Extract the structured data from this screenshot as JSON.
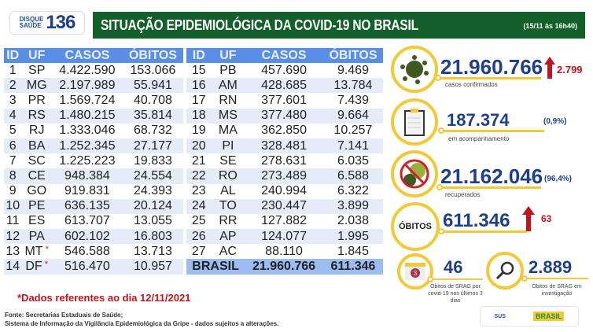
{
  "header": {
    "logo_top": "DISQUE",
    "logo_bottom": "SAÚDE",
    "logo_number": "136",
    "title": "SITUAÇÃO EPIDEMIOLÓGICA DA COVID-19 NO BRASIL",
    "date": "(15/11 às 16h40)"
  },
  "table": {
    "columns": [
      "ID",
      "UF",
      "CASOS",
      "ÓBITOS"
    ],
    "left": [
      [
        "1",
        "SP",
        "4.422.590",
        "153.066"
      ],
      [
        "2",
        "MG",
        "2.197.989",
        "55.941"
      ],
      [
        "3",
        "PR",
        "1.569.724",
        "40.708"
      ],
      [
        "4",
        "RS",
        "1.480.215",
        "35.814"
      ],
      [
        "5",
        "RJ",
        "1.333.046",
        "68.732"
      ],
      [
        "6",
        "BA",
        "1.252.345",
        "27.177"
      ],
      [
        "7",
        "SC",
        "1.225.223",
        "19.833"
      ],
      [
        "8",
        "CE",
        "948.384",
        "24.554"
      ],
      [
        "9",
        "GO",
        "919.831",
        "24.393"
      ],
      [
        "10",
        "PE",
        "636.135",
        "20.124"
      ],
      [
        "11",
        "ES",
        "613.707",
        "13.055"
      ],
      [
        "12",
        "PA",
        "602.102",
        "16.803"
      ],
      [
        "13",
        "MT",
        "546.588",
        "13.713"
      ],
      [
        "14",
        "DF",
        "516.470",
        "10.957"
      ]
    ],
    "right": [
      [
        "15",
        "PB",
        "457.690",
        "9.469"
      ],
      [
        "16",
        "AM",
        "428.685",
        "13.784"
      ],
      [
        "17",
        "RN",
        "377.601",
        "7.439"
      ],
      [
        "18",
        "MS",
        "377.480",
        "9.664"
      ],
      [
        "19",
        "MA",
        "362.850",
        "10.257"
      ],
      [
        "20",
        "PI",
        "328.481",
        "7.141"
      ],
      [
        "21",
        "SE",
        "278.631",
        "6.035"
      ],
      [
        "22",
        "RO",
        "273.489",
        "6.588"
      ],
      [
        "23",
        "AL",
        "240.994",
        "6.322"
      ],
      [
        "24",
        "TO",
        "230.447",
        "3.899"
      ],
      [
        "25",
        "RR",
        "127.882",
        "2.038"
      ],
      [
        "26",
        "AP",
        "124.077",
        "1.995"
      ],
      [
        "27",
        "AC",
        "88.110",
        "1.845"
      ]
    ],
    "starred": [
      "MT",
      "DF"
    ],
    "total": {
      "label": "BRASIL",
      "casos": "21.960.766",
      "obitos": "611.346"
    }
  },
  "stats": {
    "confirmed": {
      "value": "21.960.766",
      "label": "casos confirmados",
      "increase": "2.799",
      "icon": "virus-icon"
    },
    "monitoring": {
      "value": "187.374",
      "pct": "(0,9%)",
      "label": "em acompanhamento",
      "icon": "clipboard-icon"
    },
    "recovered": {
      "value": "21.162.046",
      "pct": "(96,4%)",
      "label": "recuperados",
      "icon": "no-virus-icon"
    },
    "deaths": {
      "badge": "ÓBITOS",
      "value": "611.346",
      "increase": "63"
    },
    "srag3": {
      "value": "46",
      "label": "Óbitos de SRAG por covid-19 nos últimos 3 dias",
      "cal": "3"
    },
    "srag_inv": {
      "value": "2.889",
      "label": "Óbitos de SRAG em investigação"
    }
  },
  "colors": {
    "green": "#14602a",
    "blue": "#1d3f8c",
    "yellow": "#f3c93a",
    "red": "#c0151f"
  },
  "footer": {
    "note": "*Dados referentes ao dia  12/11/2021",
    "source1": "Fonte: Secretarias Estaduais de Saúde;",
    "source2": "Sistema de Informação da Vigilância Epidemiológica da Gripe - dados sujeitos a alterações.",
    "sus": "SUS",
    "brasil": "BRASIL"
  }
}
